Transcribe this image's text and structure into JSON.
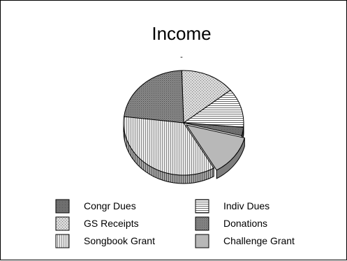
{
  "chart_data": {
    "type": "pie",
    "title": "Income",
    "subtitle": "-",
    "categories": [
      "Congr Dues",
      "Indiv Dues",
      "GS Receipts",
      "Donations",
      "Songbook Grant",
      "Challenge Grant"
    ],
    "values": [
      2.5,
      11.5,
      14,
      21.5,
      33.5,
      12
    ],
    "unit": "%",
    "legend_position": "bottom",
    "style": "3d-patterned"
  }
}
